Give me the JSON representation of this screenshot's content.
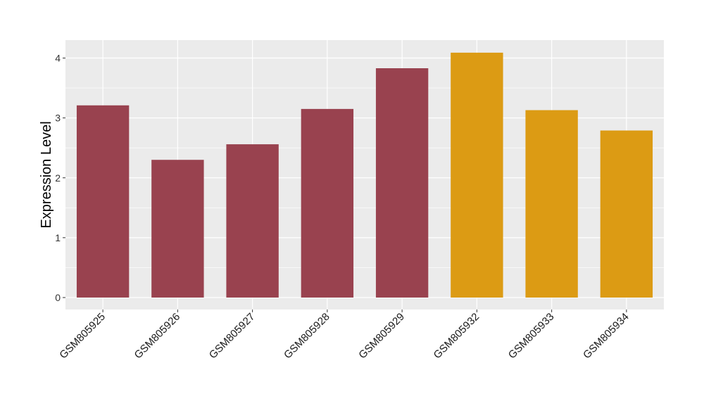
{
  "chart_data": {
    "type": "bar",
    "title": "",
    "xlabel": "",
    "ylabel": "Expression Level",
    "categories": [
      "GSM805925",
      "GSM805926",
      "GSM805927",
      "GSM805928",
      "GSM805929",
      "GSM805932",
      "GSM805933",
      "GSM805934"
    ],
    "values": [
      3.21,
      2.3,
      2.56,
      3.15,
      3.83,
      4.09,
      3.13,
      2.79
    ],
    "groups": [
      "a",
      "a",
      "a",
      "a",
      "a",
      "b",
      "b",
      "b"
    ],
    "group_colors": {
      "a": "#99424F",
      "b": "#DC9B14"
    },
    "ylim": [
      -0.2,
      4.3
    ],
    "yticks": [
      0,
      1,
      2,
      3,
      4
    ],
    "ytick_labels": [
      "0",
      "1",
      "2",
      "3",
      "4"
    ],
    "grid": true,
    "legend": "none",
    "panel_background": "#EBEBEB",
    "grid_color": "#FFFFFF"
  }
}
